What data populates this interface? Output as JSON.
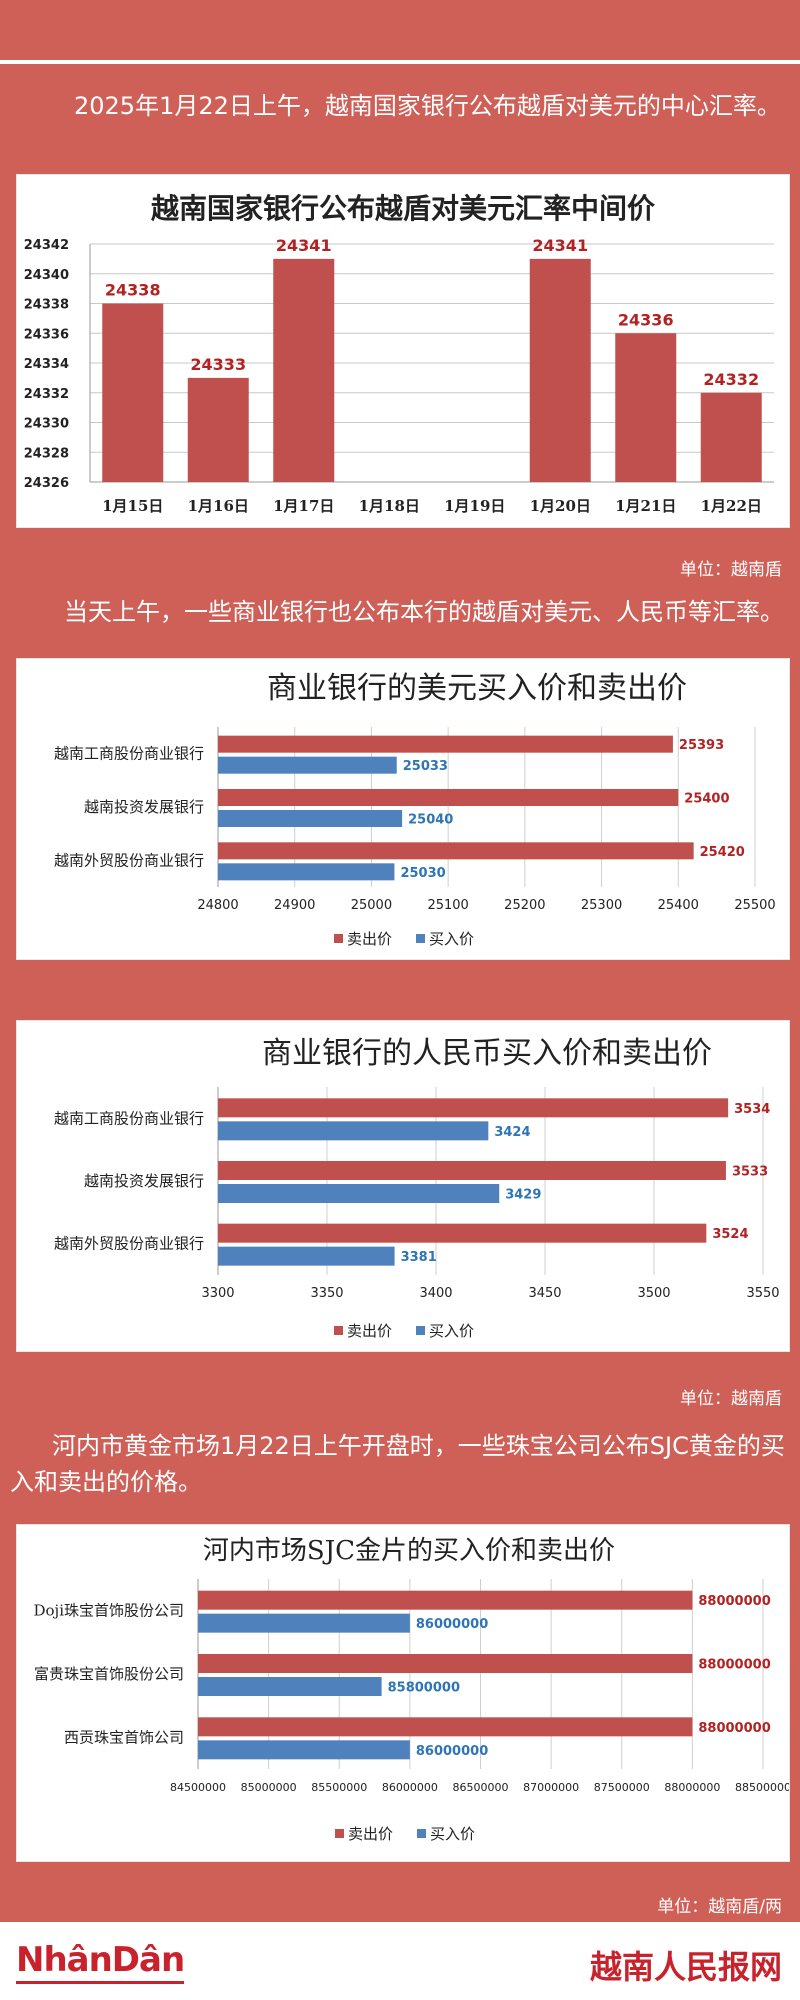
{
  "intro": {
    "p1": "2025年1月22日上午，越南国家银行公布越盾对美元的中心汇率。",
    "p2": "当天上午，一些商业银行也公布本行的越盾对美元、人民币等汇率。",
    "p3": "河内市黄金市场1月22日上午开盘时，一些珠宝公司公布SJC黄金的买入和卖出的价格。"
  },
  "units": {
    "u1": "单位：越南盾",
    "u2": "单位：越南盾",
    "u3": "单位：越南盾/两"
  },
  "colors": {
    "sell": "#c0504d",
    "buy": "#4f81bd",
    "bg": "#cf6058"
  },
  "legend": {
    "sell": "卖出价",
    "buy": "买入价"
  },
  "chart_data": [
    {
      "type": "bar",
      "title": "越南国家银行公布越盾对美元汇率中间价",
      "categories": [
        "1月15日",
        "1月16日",
        "1月17日",
        "1月18日",
        "1月19日",
        "1月20日",
        "1月21日",
        "1月22日"
      ],
      "values": [
        24338,
        24333,
        24341,
        null,
        null,
        24341,
        24336,
        24332
      ],
      "ylim": [
        24326,
        24342
      ],
      "yticks": [
        24326,
        24328,
        24330,
        24332,
        24334,
        24336,
        24338,
        24340,
        24342
      ],
      "grid": true
    },
    {
      "type": "bar",
      "orientation": "horizontal",
      "title": "商业银行的美元买入价和卖出价",
      "categories": [
        "越南工商股份商业银行",
        "越南投资发展银行",
        "越南外贸股份商业银行"
      ],
      "series": [
        {
          "name": "卖出价",
          "values": [
            25393,
            25400,
            25420
          ]
        },
        {
          "name": "买入价",
          "values": [
            25033,
            25040,
            25030
          ]
        }
      ],
      "xlim": [
        24800,
        25500
      ],
      "xticks": [
        24800,
        24900,
        25000,
        25100,
        25200,
        25300,
        25400,
        25500
      ],
      "legend": "bottom",
      "grid": true
    },
    {
      "type": "bar",
      "orientation": "horizontal",
      "title": "商业银行的人民币买入价和卖出价",
      "categories": [
        "越南工商股份商业银行",
        "越南投资发展银行",
        "越南外贸股份商业银行"
      ],
      "series": [
        {
          "name": "卖出价",
          "values": [
            3534,
            3533,
            3524
          ]
        },
        {
          "name": "买入价",
          "values": [
            3424,
            3429,
            3381
          ]
        }
      ],
      "xlim": [
        3300,
        3550
      ],
      "xticks": [
        3300,
        3350,
        3400,
        3450,
        3500,
        3550
      ],
      "legend": "bottom",
      "grid": true
    },
    {
      "type": "bar",
      "orientation": "horizontal",
      "title": "河内市场SJC金片的买入价和卖出价",
      "categories": [
        "Doji珠宝首饰股份公司",
        "富贵珠宝首饰股份公司",
        "西贡珠宝首饰公司"
      ],
      "series": [
        {
          "name": "卖出价",
          "values": [
            88000000,
            88000000,
            88000000
          ]
        },
        {
          "name": "买入价",
          "values": [
            86000000,
            85800000,
            86000000
          ]
        }
      ],
      "xlim": [
        84500000,
        88500000
      ],
      "xticks": [
        84500000,
        85000000,
        85500000,
        86000000,
        86500000,
        87000000,
        87500000,
        88000000,
        88500000
      ],
      "legend": "bottom",
      "grid": true
    }
  ],
  "footer": {
    "logo_left": "NhânDân",
    "logo_right": "越南人民报网"
  }
}
